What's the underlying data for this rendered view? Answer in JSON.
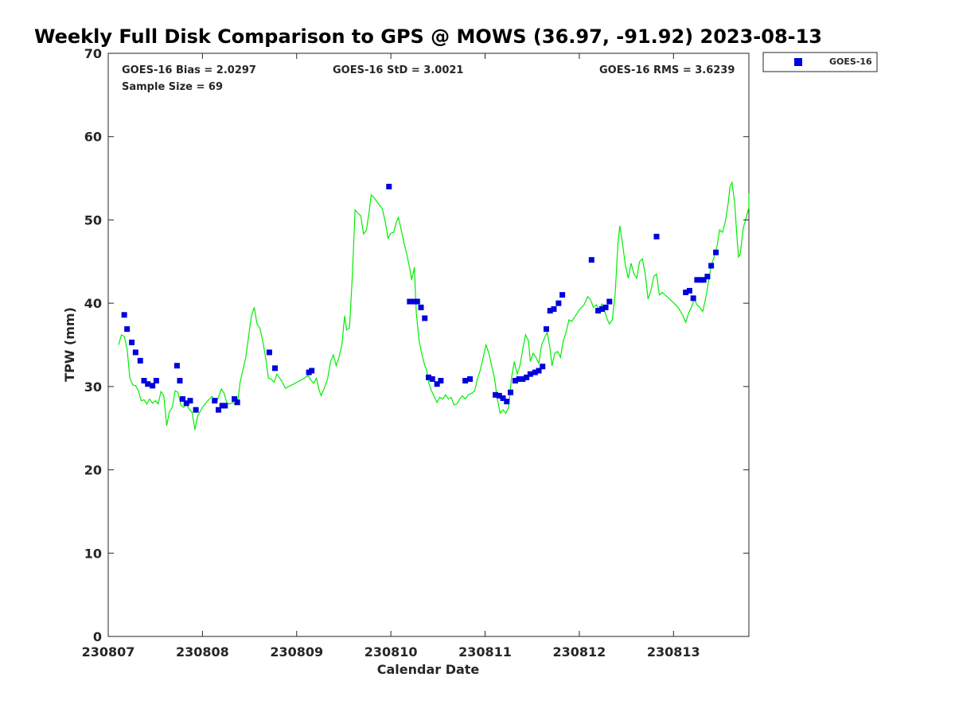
{
  "chart_data": {
    "type": "scatter",
    "title": "Weekly Full Disk Comparison to GPS @ MOWS (36.97, -91.92) 2023-08-13",
    "xlabel": "Calendar Date",
    "ylabel": "TPW (mm)",
    "xlim": [
      0,
      6.8
    ],
    "ylim": [
      0,
      70
    ],
    "x_ticks": [
      {
        "value": 0,
        "label": "230807"
      },
      {
        "value": 1,
        "label": "230808"
      },
      {
        "value": 2,
        "label": "230809"
      },
      {
        "value": 3,
        "label": "230810"
      },
      {
        "value": 4,
        "label": "230811"
      },
      {
        "value": 5,
        "label": "230812"
      },
      {
        "value": 6,
        "label": "230813"
      }
    ],
    "y_ticks": [
      0,
      10,
      20,
      30,
      40,
      50,
      60,
      70
    ],
    "grid": false,
    "legend_position": "top-right",
    "stats": {
      "bias": "GOES-16 Bias = 2.0297",
      "std": "GOES-16 StD = 3.0021",
      "rms": "GOES-16 RMS = 3.6239",
      "sample": "Sample Size = 69"
    },
    "colors": {
      "goes": "#0000dd",
      "gps": "#00ee00"
    },
    "series": [
      {
        "name": "GOES-16",
        "kind": "scatter",
        "points": [
          [
            0.17,
            38.6
          ],
          [
            0.2,
            36.9
          ],
          [
            0.25,
            35.3
          ],
          [
            0.29,
            34.1
          ],
          [
            0.34,
            33.1
          ],
          [
            0.38,
            30.7
          ],
          [
            0.42,
            30.3
          ],
          [
            0.47,
            30.1
          ],
          [
            0.51,
            30.7
          ],
          [
            0.73,
            32.5
          ],
          [
            0.76,
            30.7
          ],
          [
            0.79,
            28.5
          ],
          [
            0.83,
            28.0
          ],
          [
            0.87,
            28.3
          ],
          [
            0.93,
            27.2
          ],
          [
            1.13,
            28.3
          ],
          [
            1.17,
            27.2
          ],
          [
            1.21,
            27.7
          ],
          [
            1.24,
            27.7
          ],
          [
            1.34,
            28.5
          ],
          [
            1.37,
            28.1
          ],
          [
            1.71,
            34.1
          ],
          [
            1.77,
            32.2
          ],
          [
            2.13,
            31.7
          ],
          [
            2.16,
            31.9
          ],
          [
            2.98,
            54.0
          ],
          [
            3.2,
            40.2
          ],
          [
            3.25,
            40.2
          ],
          [
            3.28,
            40.2
          ],
          [
            3.32,
            39.5
          ],
          [
            3.36,
            38.2
          ],
          [
            3.4,
            31.1
          ],
          [
            3.44,
            30.9
          ],
          [
            3.49,
            30.3
          ],
          [
            3.53,
            30.7
          ],
          [
            3.79,
            30.7
          ],
          [
            3.84,
            30.9
          ],
          [
            4.11,
            29.0
          ],
          [
            4.15,
            28.9
          ],
          [
            4.19,
            28.6
          ],
          [
            4.23,
            28.2
          ],
          [
            4.27,
            29.3
          ],
          [
            4.32,
            30.7
          ],
          [
            4.36,
            30.9
          ],
          [
            4.4,
            30.9
          ],
          [
            4.44,
            31.1
          ],
          [
            4.48,
            31.5
          ],
          [
            4.53,
            31.7
          ],
          [
            4.57,
            31.9
          ],
          [
            4.61,
            32.4
          ],
          [
            4.65,
            36.9
          ],
          [
            4.69,
            39.1
          ],
          [
            4.73,
            39.3
          ],
          [
            4.78,
            40.0
          ],
          [
            4.82,
            41.0
          ],
          [
            5.13,
            45.2
          ],
          [
            5.2,
            39.1
          ],
          [
            5.24,
            39.3
          ],
          [
            5.28,
            39.5
          ],
          [
            5.32,
            40.2
          ],
          [
            5.82,
            48.0
          ],
          [
            6.13,
            41.3
          ],
          [
            6.17,
            41.5
          ],
          [
            6.21,
            40.6
          ],
          [
            6.25,
            42.8
          ],
          [
            6.29,
            42.8
          ],
          [
            6.32,
            42.8
          ],
          [
            6.36,
            43.2
          ],
          [
            6.4,
            44.5
          ],
          [
            6.45,
            46.1
          ]
        ]
      },
      {
        "name": "GPS",
        "kind": "line",
        "points": [
          [
            0.11,
            35.0
          ],
          [
            0.14,
            36.2
          ],
          [
            0.17,
            36.0
          ],
          [
            0.2,
            34.5
          ],
          [
            0.23,
            31.0
          ],
          [
            0.26,
            30.2
          ],
          [
            0.29,
            30.1
          ],
          [
            0.32,
            29.5
          ],
          [
            0.35,
            28.3
          ],
          [
            0.38,
            28.4
          ],
          [
            0.41,
            27.9
          ],
          [
            0.44,
            28.5
          ],
          [
            0.47,
            28.0
          ],
          [
            0.5,
            28.3
          ],
          [
            0.53,
            27.9
          ],
          [
            0.56,
            29.4
          ],
          [
            0.59,
            28.9
          ],
          [
            0.62,
            25.3
          ],
          [
            0.65,
            27.0
          ],
          [
            0.68,
            27.5
          ],
          [
            0.71,
            29.5
          ],
          [
            0.74,
            29.3
          ],
          [
            0.77,
            27.8
          ],
          [
            0.8,
            27.5
          ],
          [
            0.83,
            27.8
          ],
          [
            0.86,
            27.3
          ],
          [
            0.89,
            26.9
          ],
          [
            0.92,
            24.8
          ],
          [
            0.95,
            26.5
          ],
          [
            1.0,
            27.5
          ],
          [
            1.05,
            28.2
          ],
          [
            1.1,
            28.8
          ],
          [
            1.15,
            28.1
          ],
          [
            1.2,
            29.7
          ],
          [
            1.23,
            29.2
          ],
          [
            1.26,
            28.0
          ],
          [
            1.29,
            27.9
          ],
          [
            1.32,
            28.1
          ],
          [
            1.35,
            27.8
          ],
          [
            1.38,
            28.6
          ],
          [
            1.4,
            30.5
          ],
          [
            1.43,
            32.0
          ],
          [
            1.46,
            33.5
          ],
          [
            1.49,
            36.0
          ],
          [
            1.52,
            38.5
          ],
          [
            1.55,
            39.5
          ],
          [
            1.58,
            37.5
          ],
          [
            1.61,
            37.0
          ],
          [
            1.64,
            35.5
          ],
          [
            1.67,
            33.5
          ],
          [
            1.7,
            31.0
          ],
          [
            1.73,
            30.9
          ],
          [
            1.76,
            30.5
          ],
          [
            1.79,
            31.5
          ],
          [
            1.82,
            31.0
          ],
          [
            1.85,
            30.5
          ],
          [
            1.88,
            29.8
          ],
          [
            1.95,
            30.2
          ],
          [
            2.05,
            30.8
          ],
          [
            2.12,
            31.3
          ],
          [
            2.15,
            30.8
          ],
          [
            2.18,
            30.4
          ],
          [
            2.21,
            31.0
          ],
          [
            2.24,
            29.5
          ],
          [
            2.26,
            28.9
          ],
          [
            2.3,
            30.0
          ],
          [
            2.33,
            31.0
          ],
          [
            2.36,
            33.0
          ],
          [
            2.39,
            33.8
          ],
          [
            2.42,
            32.5
          ],
          [
            2.45,
            33.5
          ],
          [
            2.48,
            35.0
          ],
          [
            2.51,
            38.5
          ],
          [
            2.53,
            36.8
          ],
          [
            2.56,
            37.0
          ],
          [
            2.59,
            43.0
          ],
          [
            2.62,
            51.2
          ],
          [
            2.65,
            50.8
          ],
          [
            2.68,
            50.5
          ],
          [
            2.71,
            48.3
          ],
          [
            2.74,
            48.8
          ],
          [
            2.77,
            51.0
          ],
          [
            2.79,
            53.0
          ],
          [
            2.82,
            52.7
          ],
          [
            2.85,
            52.2
          ],
          [
            2.88,
            51.8
          ],
          [
            2.91,
            51.3
          ],
          [
            2.94,
            49.8
          ],
          [
            2.97,
            47.8
          ],
          [
            3.0,
            48.4
          ],
          [
            3.03,
            48.5
          ],
          [
            3.06,
            49.8
          ],
          [
            3.08,
            50.3
          ],
          [
            3.11,
            48.8
          ],
          [
            3.14,
            47.2
          ],
          [
            3.17,
            45.8
          ],
          [
            3.2,
            44.2
          ],
          [
            3.22,
            42.8
          ],
          [
            3.25,
            44.3
          ],
          [
            3.27,
            38.8
          ],
          [
            3.3,
            35.5
          ],
          [
            3.33,
            33.8
          ],
          [
            3.36,
            32.5
          ],
          [
            3.38,
            32.0
          ],
          [
            3.4,
            30.5
          ],
          [
            3.43,
            29.5
          ],
          [
            3.46,
            28.8
          ],
          [
            3.49,
            28.1
          ],
          [
            3.52,
            28.7
          ],
          [
            3.55,
            28.5
          ],
          [
            3.58,
            29.0
          ],
          [
            3.61,
            28.5
          ],
          [
            3.64,
            28.7
          ],
          [
            3.67,
            27.8
          ],
          [
            3.7,
            27.9
          ],
          [
            3.73,
            28.5
          ],
          [
            3.76,
            28.9
          ],
          [
            3.79,
            28.5
          ],
          [
            3.82,
            29.0
          ],
          [
            3.86,
            29.2
          ],
          [
            3.89,
            29.5
          ],
          [
            3.92,
            31.0
          ],
          [
            3.95,
            32.0
          ],
          [
            3.98,
            33.5
          ],
          [
            4.01,
            35.0
          ],
          [
            4.04,
            34.0
          ],
          [
            4.07,
            32.5
          ],
          [
            4.1,
            31.0
          ],
          [
            4.13,
            28.5
          ],
          [
            4.16,
            26.8
          ],
          [
            4.19,
            27.2
          ],
          [
            4.22,
            26.8
          ],
          [
            4.25,
            27.5
          ],
          [
            4.28,
            31.0
          ],
          [
            4.31,
            33.0
          ],
          [
            4.34,
            31.5
          ],
          [
            4.37,
            32.5
          ],
          [
            4.4,
            34.5
          ],
          [
            4.43,
            36.2
          ],
          [
            4.46,
            35.5
          ],
          [
            4.48,
            33.0
          ],
          [
            4.51,
            34.0
          ],
          [
            4.54,
            33.5
          ],
          [
            4.57,
            32.8
          ],
          [
            4.6,
            35.0
          ],
          [
            4.63,
            35.8
          ],
          [
            4.66,
            36.5
          ],
          [
            4.69,
            34.5
          ],
          [
            4.71,
            32.5
          ],
          [
            4.74,
            34.0
          ],
          [
            4.77,
            34.2
          ],
          [
            4.8,
            33.5
          ],
          [
            4.83,
            35.5
          ],
          [
            4.86,
            36.5
          ],
          [
            4.89,
            38.0
          ],
          [
            4.92,
            37.8
          ],
          [
            4.96,
            38.5
          ],
          [
            5.0,
            39.2
          ],
          [
            5.05,
            39.8
          ],
          [
            5.09,
            40.8
          ],
          [
            5.12,
            40.4
          ],
          [
            5.15,
            39.5
          ],
          [
            5.18,
            39.8
          ],
          [
            5.21,
            39.2
          ],
          [
            5.24,
            39.9
          ],
          [
            5.27,
            39.0
          ],
          [
            5.3,
            38.0
          ],
          [
            5.32,
            37.5
          ],
          [
            5.35,
            38.0
          ],
          [
            5.38,
            41.0
          ],
          [
            5.41,
            47.0
          ],
          [
            5.43,
            49.3
          ],
          [
            5.46,
            47.0
          ],
          [
            5.49,
            44.5
          ],
          [
            5.52,
            43.0
          ],
          [
            5.55,
            44.8
          ],
          [
            5.58,
            43.5
          ],
          [
            5.61,
            43.0
          ],
          [
            5.64,
            45.0
          ],
          [
            5.67,
            45.3
          ],
          [
            5.7,
            43.5
          ],
          [
            5.73,
            40.5
          ],
          [
            5.76,
            41.5
          ],
          [
            5.79,
            43.2
          ],
          [
            5.82,
            43.5
          ],
          [
            5.85,
            41.0
          ],
          [
            5.88,
            41.3
          ],
          [
            5.95,
            40.6
          ],
          [
            6.05,
            39.5
          ],
          [
            6.1,
            38.5
          ],
          [
            6.13,
            37.7
          ],
          [
            6.16,
            38.8
          ],
          [
            6.19,
            39.5
          ],
          [
            6.22,
            40.5
          ],
          [
            6.25,
            39.8
          ],
          [
            6.28,
            39.5
          ],
          [
            6.31,
            39.0
          ],
          [
            6.34,
            40.5
          ],
          [
            6.37,
            42.5
          ],
          [
            6.4,
            44.5
          ],
          [
            6.43,
            45.5
          ],
          [
            6.46,
            46.8
          ],
          [
            6.49,
            48.8
          ],
          [
            6.52,
            48.5
          ],
          [
            6.55,
            49.8
          ],
          [
            6.58,
            52.0
          ],
          [
            6.6,
            54.0
          ],
          [
            6.62,
            54.5
          ],
          [
            6.65,
            52.0
          ],
          [
            6.67,
            48.5
          ],
          [
            6.69,
            45.5
          ],
          [
            6.71,
            46.0
          ],
          [
            6.74,
            49.0
          ],
          [
            6.77,
            50.2
          ],
          [
            6.8,
            51.5
          ],
          [
            6.8,
            53.2
          ]
        ]
      }
    ]
  }
}
